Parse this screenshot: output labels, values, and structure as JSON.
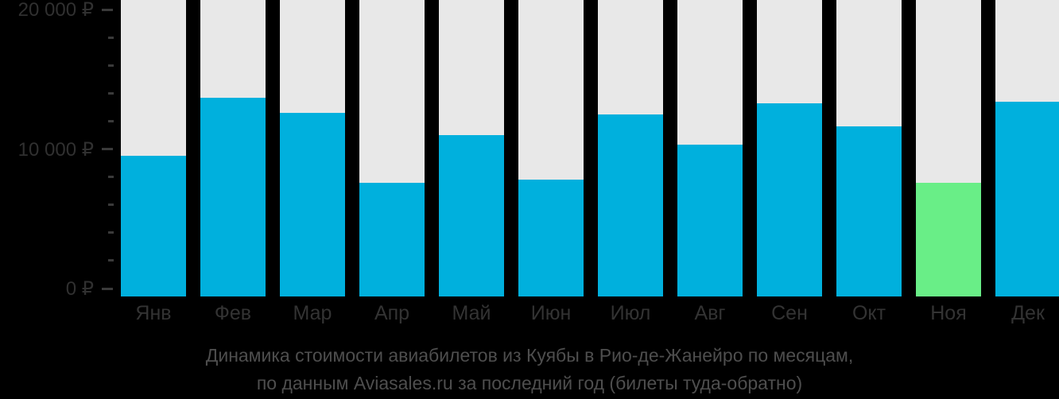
{
  "page": {
    "background_color": "#000000"
  },
  "chart_data": {
    "type": "bar",
    "title": "",
    "xlabel": "",
    "ylabel": "",
    "categories": [
      "Янв",
      "Фев",
      "Мар",
      "Апр",
      "Май",
      "Июн",
      "Июл",
      "Авг",
      "Сен",
      "Окт",
      "Ноя",
      "Дек"
    ],
    "values": [
      9500,
      13700,
      12600,
      7600,
      11000,
      7800,
      12500,
      10300,
      13300,
      11600,
      7600,
      13400
    ],
    "value_unit": "RUB",
    "highlight_index": 10,
    "highlight_category": "Ноя",
    "ylim": [
      0,
      20500
    ],
    "grid": false,
    "legend": "none",
    "y_ticks": [
      {
        "value": 0,
        "label": "0 ₽"
      },
      {
        "value": 10000,
        "label": "10 000 ₽"
      },
      {
        "value": 20000,
        "label": "20 000 ₽"
      }
    ],
    "minor_tick_step": 2000,
    "colors": {
      "bar": "#00b0dd",
      "bar_highlight": "#69ee87",
      "track": "#e8e8e8",
      "axis_label": "#303030",
      "tick": "#3a3a3a",
      "month_label": "#333333",
      "caption": "#4e4e4e",
      "background": "#000000"
    }
  },
  "caption": {
    "line1": "Динамика стоимости авиабилетов из Куябы в Рио-де-Жанейро по месяцам,",
    "line2": "по данным Aviasales.ru за последний год (билеты туда-обратно)"
  }
}
